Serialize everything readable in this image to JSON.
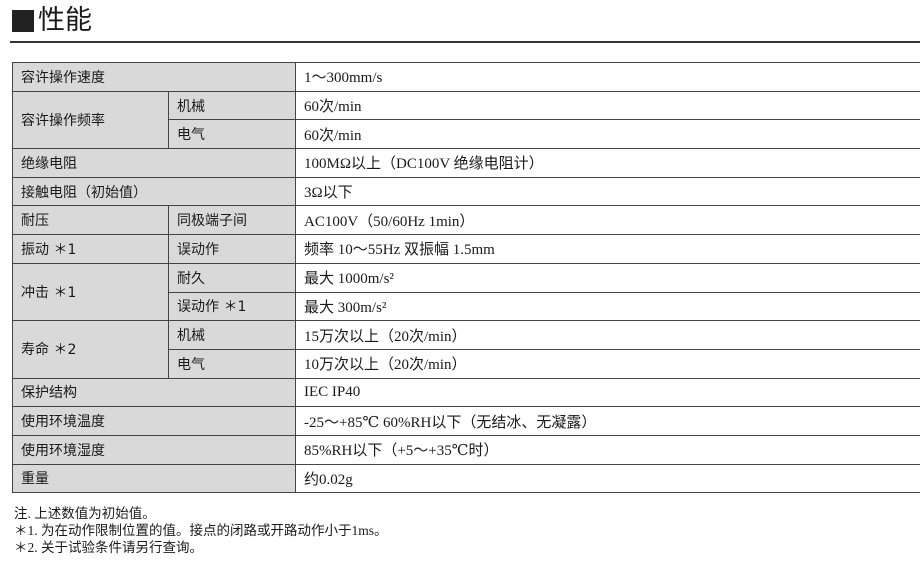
{
  "title": "性能",
  "rows": [
    {
      "label": "容许操作速度",
      "value": "1～300mm/s"
    },
    {
      "label": "容许操作频率",
      "sub": "机械",
      "value": "60次/min"
    },
    {
      "sub": "电气",
      "value": "60次/min"
    },
    {
      "label": "绝缘电阻",
      "value": "100MΩ以上（DC100V 绝缘电阻计）"
    },
    {
      "label": "接触电阻（初始值）",
      "value": "3Ω以下"
    },
    {
      "label": "耐压",
      "sub": "同极端子间",
      "value": "AC100V（50/60Hz  1min）"
    },
    {
      "label": "振动 ＊1",
      "sub": "误动作",
      "value": "频率 10～55Hz  双振幅 1.5mm"
    },
    {
      "label": "冲击 ＊1",
      "sub": "耐久",
      "value": "最大 1000m/s²"
    },
    {
      "sub": "误动作 ＊1",
      "value": "最大 300m/s²"
    },
    {
      "label": "寿命 ＊2",
      "sub": "机械",
      "value": "15万次以上（20次/min）"
    },
    {
      "sub": "电气",
      "value": "10万次以上（20次/min）"
    },
    {
      "label": "保护结构",
      "value": "IEC IP40"
    },
    {
      "label": "使用环境温度",
      "value": "-25～+85℃  60%RH以下（无结冰、无凝露）"
    },
    {
      "label": "使用环境湿度",
      "value": "85%RH以下（+5～+35℃时）"
    },
    {
      "label": "重量",
      "value": "约0.02g"
    }
  ],
  "notes": [
    "注.  上述数值为初始值。",
    "＊1. 为在动作限制位置的值。接点的闭路或开路动作小于1ms。",
    "＊2. 关于试验条件请另行查询。"
  ]
}
